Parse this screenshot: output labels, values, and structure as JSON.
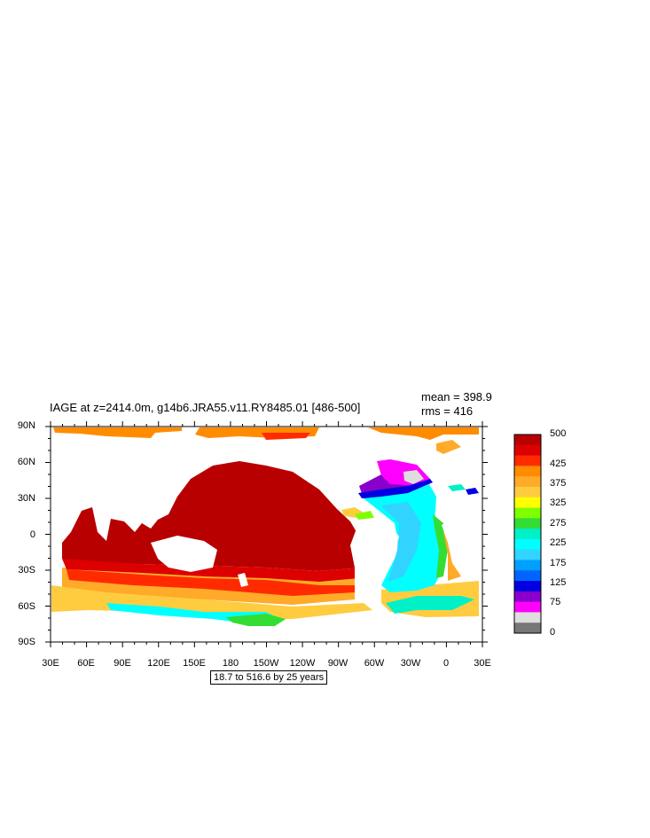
{
  "title": "IAGE at z=2414.0m, g14b6.JRA55.v11.RY8485.01 [486-500]",
  "stats": {
    "mean": "mean = 398.9",
    "rms": "rms = 416"
  },
  "lat_labels": [
    "90N",
    "60N",
    "30N",
    "0",
    "30S",
    "60S",
    "90S"
  ],
  "lon_labels": [
    "30E",
    "60E",
    "90E",
    "120E",
    "150E",
    "180",
    "150W",
    "120W",
    "90W",
    "60W",
    "30W",
    "0",
    "30E"
  ],
  "range_note": "18.7 to 516.6 by 25 years",
  "colorbar": {
    "colors": [
      "#b80000",
      "#dc0000",
      "#ff2a00",
      "#ff8c00",
      "#ffaa28",
      "#ffcc40",
      "#ffff00",
      "#7fff00",
      "#33dd33",
      "#00f0c8",
      "#00ffff",
      "#30d4ff",
      "#00a0ff",
      "#0064ff",
      "#0000e0",
      "#8800cc",
      "#ff00ff",
      "#dddddd",
      "#777777"
    ],
    "labels": [
      {
        "text": "500",
        "value": 500
      },
      {
        "text": "425",
        "value": 425
      },
      {
        "text": "375",
        "value": 375
      },
      {
        "text": "325",
        "value": 325
      },
      {
        "text": "275",
        "value": 275
      },
      {
        "text": "225",
        "value": 225
      },
      {
        "text": "175",
        "value": 175
      },
      {
        "text": "125",
        "value": 125
      },
      {
        "text": "75",
        "value": 75
      },
      {
        "text": "0",
        "value": 0
      }
    ]
  }
}
